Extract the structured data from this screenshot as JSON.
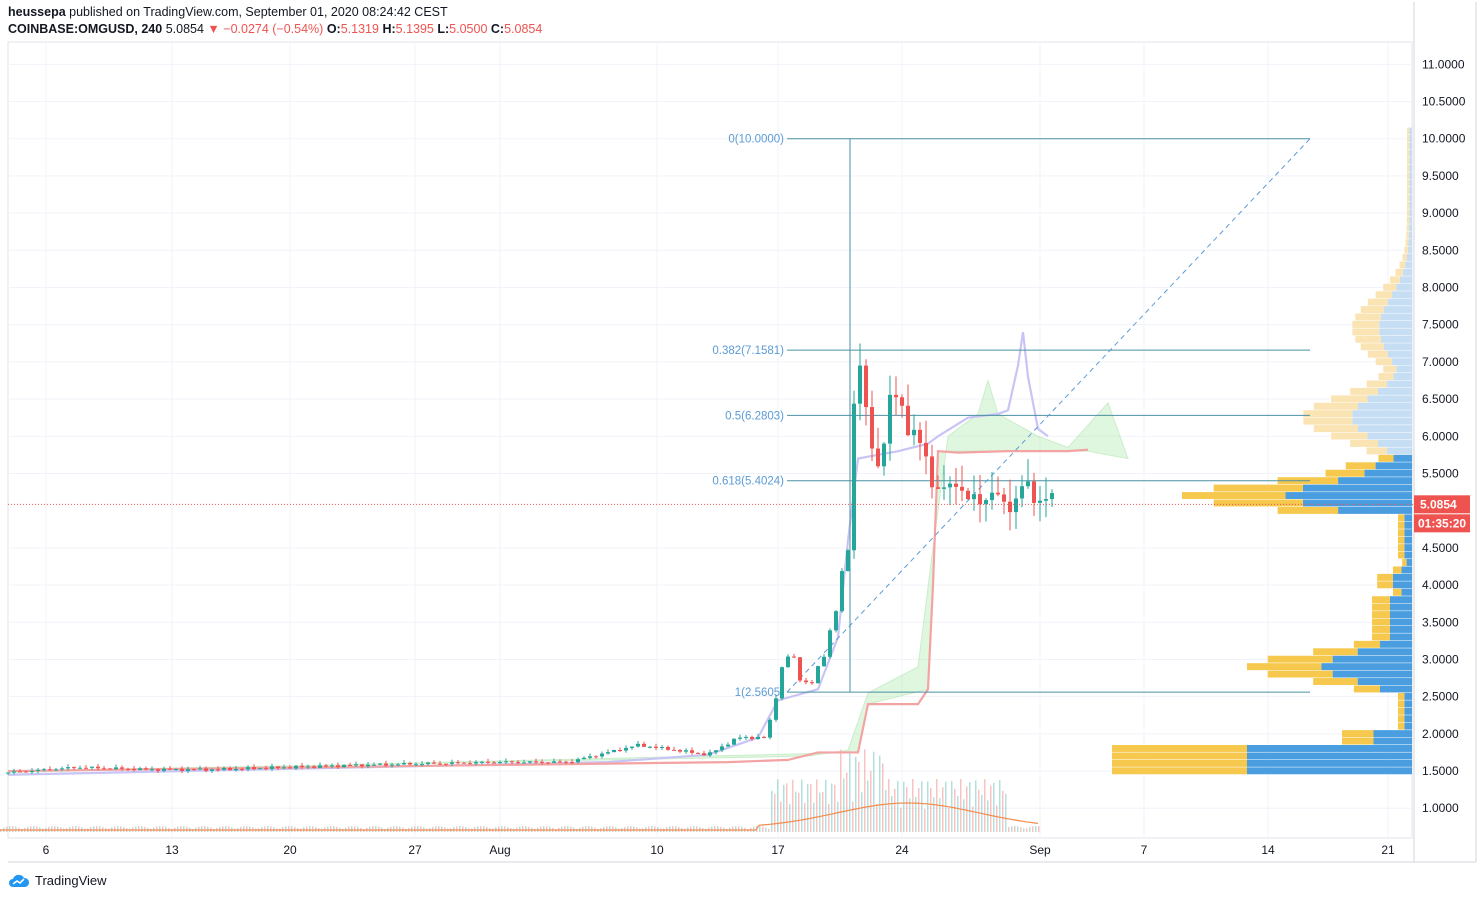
{
  "header": {
    "publisher": "heussepa",
    "published_text": "published on TradingView.com, September 01, 2020 08:24:42 CEST",
    "symbol": "COINBASE:OMGUSD, 240",
    "last": "5.0854",
    "change_arrow": "▼",
    "change": "−0.0274 (−0.54%)",
    "o_label": "O:",
    "o": "5.1319",
    "h_label": "H:",
    "h": "5.1395",
    "l_label": "L:",
    "l": "5.0500",
    "c_label": "C:",
    "c": "5.0854"
  },
  "footer": {
    "brand": "TradingView",
    "icon": "tradingview-cloud-icon"
  },
  "colors": {
    "up": "#26a69a",
    "down": "#ef5350",
    "fib": "#5b9bd5",
    "fib_line": "#4a90a4",
    "conv": "#c8c4f5",
    "base": "#f4a3a3",
    "span": "#b9ecb9",
    "vol_ma": "#f28c4e",
    "vp_up": "#4a9ee0",
    "vp_down": "#f6c94e",
    "vp_up_light": "#c6def4",
    "vp_down_light": "#fbe4b3"
  },
  "chart_data": {
    "type": "candlestick",
    "y_axis": {
      "ticks": [
        "11.0000",
        "10.5000",
        "10.0000",
        "9.5000",
        "9.0000",
        "8.5000",
        "8.0000",
        "7.5000",
        "7.0000",
        "6.5000",
        "6.0000",
        "5.5000",
        "4.5000",
        "4.0000",
        "3.5000",
        "3.0000",
        "2.5000",
        "2.0000",
        "1.5000",
        "1.0000"
      ],
      "range": [
        0.6,
        11.3
      ]
    },
    "x_axis": {
      "ticks": [
        "6",
        "13",
        "20",
        "27",
        "Aug",
        "10",
        "17",
        "24",
        "Sep",
        "7",
        "14",
        "21"
      ]
    },
    "last_price_label": "5.0854",
    "countdown_label": "01:35:20",
    "fib_levels": [
      {
        "label": "0(10.0000)",
        "value": 10.0
      },
      {
        "label": "0.382(7.1581)",
        "value": 7.1581
      },
      {
        "label": "0.5(6.2803)",
        "value": 6.2803
      },
      {
        "label": "0.618(5.4024)",
        "value": 5.4024
      },
      {
        "label": "1(2.5605)",
        "value": 2.5605
      }
    ],
    "price_path": [
      [
        0,
        1.48
      ],
      [
        7,
        1.55
      ],
      [
        14,
        1.52
      ],
      [
        21,
        1.52
      ],
      [
        28,
        1.55
      ],
      [
        35,
        1.58
      ],
      [
        42,
        1.6
      ],
      [
        49,
        1.62
      ],
      [
        56,
        1.62
      ],
      [
        63,
        1.85
      ],
      [
        70,
        1.72
      ],
      [
        73,
        1.95
      ],
      [
        76,
        1.95
      ],
      [
        77,
        2.75
      ],
      [
        78,
        3.05
      ],
      [
        79,
        2.85
      ],
      [
        80,
        2.65
      ],
      [
        81,
        2.8
      ],
      [
        82,
        3.3
      ],
      [
        83,
        3.8
      ],
      [
        84,
        4.5
      ],
      [
        84.5,
        6.2
      ],
      [
        85,
        7.5
      ],
      [
        85.5,
        6.5
      ],
      [
        86,
        6.0
      ],
      [
        87,
        5.6
      ],
      [
        88,
        6.4
      ],
      [
        89,
        6.5
      ],
      [
        90,
        6.2
      ],
      [
        91,
        5.9
      ],
      [
        92,
        5.6
      ],
      [
        93,
        5.3
      ],
      [
        94,
        5.2
      ],
      [
        95,
        5.5
      ],
      [
        96,
        5.1
      ],
      [
        97,
        5.1
      ],
      [
        98,
        5.3
      ],
      [
        99,
        5.1
      ],
      [
        100,
        5.1
      ],
      [
        101,
        5.2
      ],
      [
        102,
        5.3
      ],
      [
        103,
        5.2
      ],
      [
        104,
        5.1
      ],
      [
        104.5,
        5.08
      ]
    ],
    "ichimoku": {
      "conversion": [
        [
          0,
          1.45
        ],
        [
          60,
          1.62
        ],
        [
          70,
          1.72
        ],
        [
          75,
          1.95
        ],
        [
          77,
          2.45
        ],
        [
          81,
          2.6
        ],
        [
          83,
          3.3
        ],
        [
          84,
          4.6
        ],
        [
          85,
          5.7
        ],
        [
          89,
          5.8
        ],
        [
          92,
          5.9
        ],
        [
          93,
          6.0
        ],
        [
          96,
          6.25
        ],
        [
          99,
          6.3
        ],
        [
          100,
          6.35
        ],
        [
          101,
          6.95
        ],
        [
          101.5,
          7.4
        ],
        [
          102,
          6.8
        ],
        [
          103,
          6.1
        ],
        [
          104,
          6.0
        ]
      ],
      "base": [
        [
          0,
          1.5
        ],
        [
          60,
          1.6
        ],
        [
          72,
          1.62
        ],
        [
          78,
          1.65
        ],
        [
          81,
          1.75
        ],
        [
          85,
          1.75
        ],
        [
          86,
          2.4
        ],
        [
          91,
          2.4
        ],
        [
          92,
          2.6
        ],
        [
          92.5,
          4.0
        ],
        [
          93,
          5.8
        ],
        [
          95,
          5.78
        ],
        [
          100,
          5.8
        ],
        [
          106,
          5.8
        ],
        [
          108,
          5.82
        ]
      ]
    },
    "volume_ma_label": "",
    "volume_profile_note": ""
  }
}
